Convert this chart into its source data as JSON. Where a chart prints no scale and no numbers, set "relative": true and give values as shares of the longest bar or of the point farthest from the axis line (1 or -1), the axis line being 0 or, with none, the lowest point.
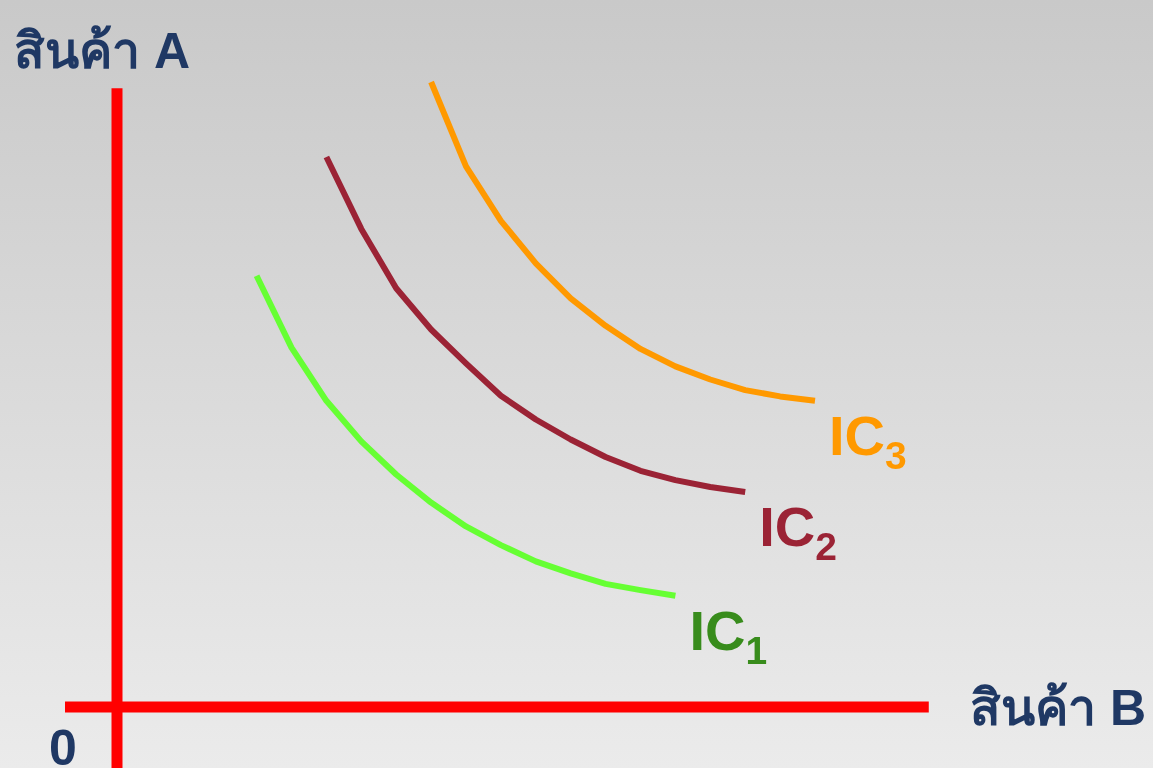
{
  "chart_data": {
    "type": "line",
    "relative": true,
    "xlabel": "สินค้า B",
    "ylabel": "สินค้า A",
    "annotations": [
      "0"
    ],
    "categories": [
      null,
      null,
      null,
      null,
      null,
      null,
      null,
      null,
      null,
      null,
      null,
      null,
      null,
      null,
      null,
      null,
      null,
      null,
      null,
      null,
      null
    ],
    "series": [
      {
        "name": "IC$_{1}$",
        "color": "#66ff33",
        "values": [
          null,
          null,
          null,
          null,
          0.69,
          0.575,
          0.49,
          0.425,
          0.372,
          0.327,
          0.289,
          0.259,
          0.233,
          0.214,
          0.197,
          0.187,
          0.178,
          null,
          null,
          null,
          null
        ]
      },
      {
        "name": "IC$_{2}$",
        "color": "#9b2335",
        "values": [
          null,
          null,
          null,
          null,
          null,
          null,
          0.88,
          0.765,
          0.67,
          0.604,
          0.55,
          0.498,
          0.46,
          0.428,
          0.4,
          0.378,
          0.363,
          0.352,
          0.344,
          null,
          null
        ]
      },
      {
        "name": "IC$_{3}$",
        "color": "#ff9900",
        "values": [
          null,
          null,
          null,
          null,
          null,
          null,
          null,
          null,
          null,
          1,
          0.865,
          0.778,
          0.71,
          0.654,
          0.61,
          0.573,
          0.545,
          0.524,
          0.507,
          0.497,
          0.49
        ]
      }
    ]
  }
}
